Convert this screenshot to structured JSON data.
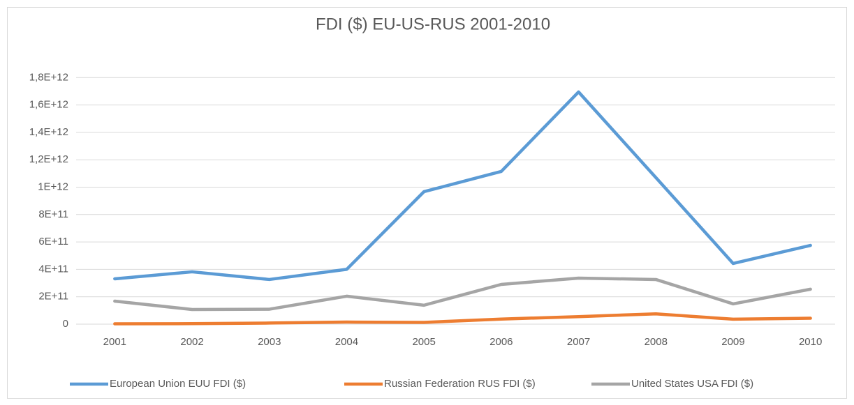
{
  "chart_data": {
    "type": "line",
    "title": "FDI ($) EU-US-RUS 2001-2010",
    "categories": [
      "2001",
      "2002",
      "2003",
      "2004",
      "2005",
      "2006",
      "2007",
      "2008",
      "2009",
      "2010"
    ],
    "series": [
      {
        "name": "European Union EUU FDI ($)",
        "color": "#5b9bd5",
        "values": [
          331000000000,
          382000000000,
          326000000000,
          400000000000,
          967000000000,
          1115000000000,
          1695000000000,
          1070000000000,
          443000000000,
          575000000000
        ]
      },
      {
        "name": "Russian Federation RUS FDI ($)",
        "color": "#ed7d31",
        "values": [
          2700000000,
          3500000000,
          8000000000,
          15000000000,
          13000000000,
          37000000000,
          55000000000,
          75000000000,
          36000000000,
          43000000000
        ]
      },
      {
        "name": "United States USA FDI ($)",
        "color": "#a5a5a5",
        "values": [
          168000000000,
          107000000000,
          109000000000,
          204000000000,
          138000000000,
          290000000000,
          336000000000,
          326000000000,
          148000000000,
          255000000000
        ]
      }
    ],
    "ylim": [
      0,
      2000000000000
    ],
    "yticks": [
      0,
      {
        "value": 200000000000,
        "label": "2E+11"
      },
      {
        "value": 400000000000,
        "label": "4E+11"
      },
      {
        "value": 600000000000,
        "label": "6E+11"
      },
      {
        "value": 800000000000,
        "label": "8E+11"
      },
      {
        "value": 1000000000000,
        "label": "1E+12"
      },
      {
        "value": 1200000000000,
        "label": "1,2E+12"
      },
      {
        "value": 1400000000000,
        "label": "1,4E+12"
      },
      {
        "value": 1600000000000,
        "label": "1,6E+12"
      },
      {
        "value": 1800000000000,
        "label": "1,8E+12"
      }
    ],
    "grid": true,
    "legend": "bottom"
  }
}
